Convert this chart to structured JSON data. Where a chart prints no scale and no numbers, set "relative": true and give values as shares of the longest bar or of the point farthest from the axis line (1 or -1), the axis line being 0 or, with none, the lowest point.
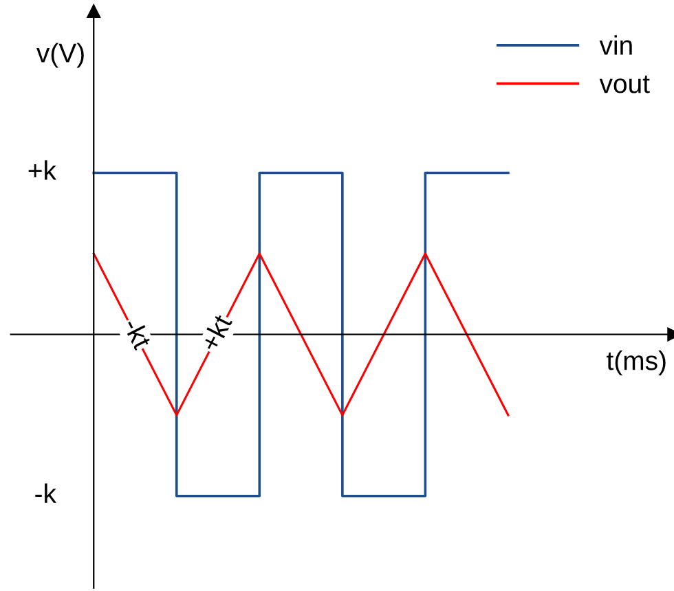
{
  "chart_data": {
    "type": "line",
    "relative": true,
    "xlabel": "t(ms)",
    "ylabel": "v(V)",
    "categories": [
      null,
      null,
      null,
      null,
      null,
      null
    ],
    "series": [
      {
        "name": "vin",
        "type": "step",
        "color": "#1f4e8c",
        "values": [
          1,
          -1,
          1,
          -1,
          1,
          1
        ]
      },
      {
        "name": "vout",
        "color": "#ff0000",
        "values": [
          0.5,
          -0.5,
          0.5,
          -0.5,
          0.5,
          -0.5
        ]
      }
    ],
    "annotations": [
      "+k",
      "-k",
      {
        "text": "-kt",
        "y": 0
      },
      {
        "text": "+kt",
        "y": 0
      }
    ],
    "legend": "top right"
  }
}
